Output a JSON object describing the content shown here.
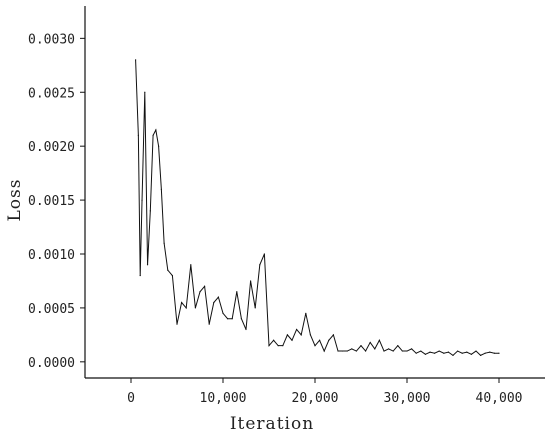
{
  "chart_data": {
    "type": "line",
    "xlabel": "Iteration",
    "ylabel": "Loss",
    "xlim": [
      -5000,
      45000
    ],
    "ylim": [
      -0.00015,
      0.0033
    ],
    "x_ticks": [
      0,
      10000,
      20000,
      30000,
      40000
    ],
    "x_tick_labels": [
      "0",
      "10,000",
      "20,000",
      "30,000",
      "40,000"
    ],
    "y_ticks": [
      0.0,
      0.0005,
      0.001,
      0.0015,
      0.002,
      0.0025,
      0.003
    ],
    "y_tick_labels": [
      "0.0000",
      "0.0005",
      "0.0010",
      "0.0015",
      "0.0020",
      "0.0025",
      "0.0030"
    ],
    "grid": false,
    "series": [
      {
        "x": [
          500,
          800,
          1000,
          1200,
          1500,
          1800,
          2100,
          2400,
          2700,
          3000,
          3300,
          3600,
          4000,
          4500,
          5000,
          5500,
          6000,
          6500,
          7000,
          7500,
          8000,
          8500,
          9000,
          9500,
          10000,
          10500,
          11000,
          11500,
          12000,
          12500,
          13000,
          13500,
          14000,
          14500,
          15000,
          15500,
          16000,
          16500,
          17000,
          17500,
          18000,
          18500,
          19000,
          19500,
          20000,
          20500,
          21000,
          21500,
          22000,
          22500,
          23000,
          23500,
          24000,
          24500,
          25000,
          25500,
          26000,
          26500,
          27000,
          27500,
          28000,
          28500,
          29000,
          29500,
          30000,
          30500,
          31000,
          31500,
          32000,
          32500,
          33000,
          33500,
          34000,
          34500,
          35000,
          35500,
          36000,
          36500,
          37000,
          37500,
          38000,
          38500,
          39000,
          39500,
          40000
        ],
        "y": [
          0.0028,
          0.0021,
          0.0008,
          0.0015,
          0.0025,
          0.0009,
          0.0014,
          0.0021,
          0.00215,
          0.002,
          0.0016,
          0.0011,
          0.00085,
          0.0008,
          0.00035,
          0.00055,
          0.0005,
          0.0009,
          0.0005,
          0.00065,
          0.0007,
          0.00035,
          0.00055,
          0.0006,
          0.00045,
          0.0004,
          0.0004,
          0.00065,
          0.0004,
          0.0003,
          0.00075,
          0.0005,
          0.0009,
          0.001,
          0.00015,
          0.0002,
          0.00015,
          0.00015,
          0.00025,
          0.0002,
          0.0003,
          0.00025,
          0.00045,
          0.00025,
          0.00015,
          0.0002,
          0.0001,
          0.0002,
          0.00025,
          0.0001,
          0.0001,
          0.0001,
          0.00012,
          0.0001,
          0.00015,
          0.0001,
          0.00018,
          0.00012,
          0.0002,
          0.0001,
          0.00012,
          0.0001,
          0.00015,
          0.0001,
          0.0001,
          0.00012,
          8e-05,
          0.0001,
          7e-05,
          9e-05,
          8e-05,
          0.0001,
          8e-05,
          9e-05,
          6e-05,
          0.0001,
          8e-05,
          9e-05,
          7e-05,
          0.0001,
          6e-05,
          8e-05,
          9e-05,
          8e-05,
          8e-05
        ]
      }
    ]
  }
}
